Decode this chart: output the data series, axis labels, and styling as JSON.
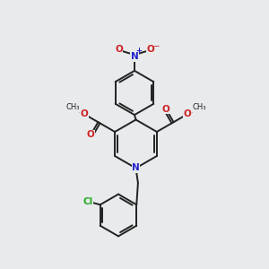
{
  "background_color": "#e8eaec",
  "bond_color": "#222222",
  "bond_width": 1.4,
  "atom_colors": {
    "N_nitro": "#2222cc",
    "N_ring": "#2222cc",
    "O": "#cc2222",
    "Cl": "#22aa22",
    "C": "#222222"
  },
  "figsize": [
    3.0,
    3.0
  ],
  "dpi": 100,
  "xlim": [
    0,
    10
  ],
  "ylim": [
    0,
    10
  ]
}
